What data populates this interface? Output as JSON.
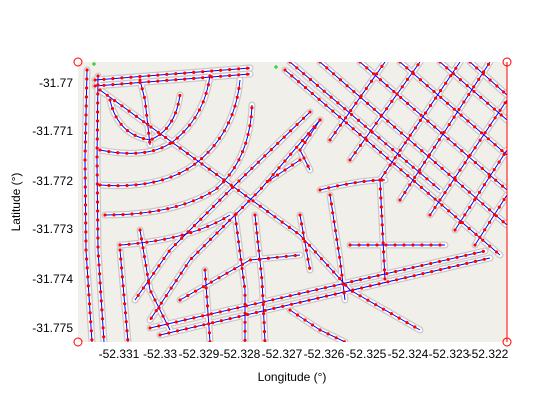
{
  "map": {
    "colors": {
      "background": "#ffffff",
      "map_ground": "#f1efea",
      "road_casing": "#c8c8c8",
      "road_fill": "#ffffff",
      "route_line": "#0000ff",
      "node_marker": "#ff0000",
      "start_marker": "#00c800",
      "corner_marker": "#ff0000"
    },
    "x_axis": {
      "label": "Longitude (°)",
      "ticks": [
        "-52.331",
        "-52.33",
        "-52.329",
        "-52.328",
        "-52.327",
        "-52.326",
        "-52.325",
        "-52.324",
        "-52.323",
        "-52.322"
      ]
    },
    "y_axis": {
      "label": "Latitude (°)",
      "ticks": [
        "-31.77",
        "-31.771",
        "-31.772",
        "-31.773",
        "-31.774",
        "-31.775"
      ]
    },
    "corner_markers": [
      "top-left",
      "top-right",
      "bottom-left",
      "bottom-right"
    ],
    "start_markers": 2
  }
}
